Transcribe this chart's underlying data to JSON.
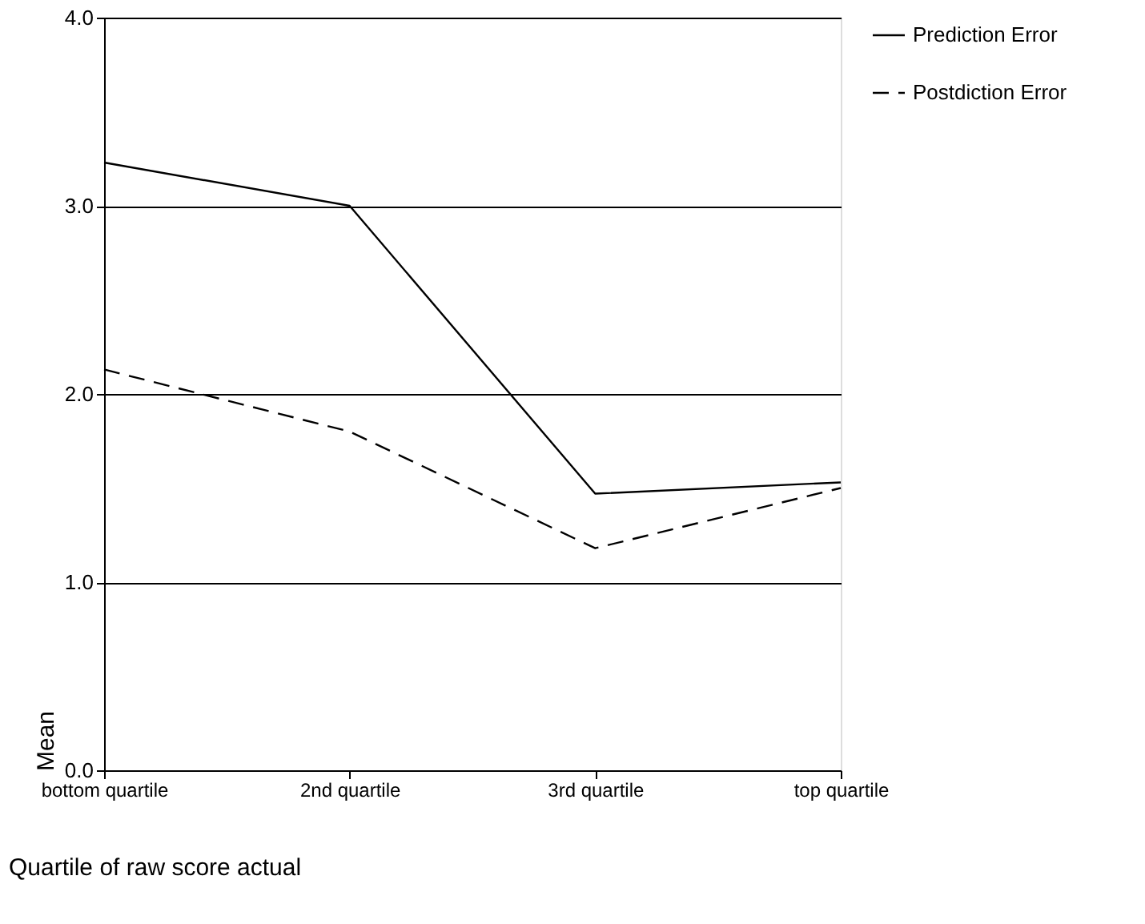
{
  "chart_data": {
    "type": "line",
    "xlabel": "Quartile of raw score actual",
    "ylabel": "Mean",
    "categories": [
      "bottom quartile",
      "2nd quartile",
      "3rd quartile",
      "top quartile"
    ],
    "series": [
      {
        "name": "Prediction Error",
        "color": "#000000",
        "line_style": "solid",
        "values": [
          3.23,
          3.0,
          1.47,
          1.53
        ]
      },
      {
        "name": "Postdiction Error",
        "color": "#000000",
        "line_style": "dashed",
        "values": [
          2.13,
          1.8,
          1.18,
          1.5
        ]
      }
    ],
    "ylim": [
      0,
      4
    ],
    "yticks": [
      {
        "value": 0,
        "label": "0.0"
      },
      {
        "value": 1,
        "label": "1.0"
      },
      {
        "value": 2,
        "label": "2.0"
      },
      {
        "value": 3,
        "label": "3.0"
      },
      {
        "value": 4,
        "label": "4.0"
      }
    ],
    "grid": "y",
    "legend": "right",
    "marker": "none"
  }
}
